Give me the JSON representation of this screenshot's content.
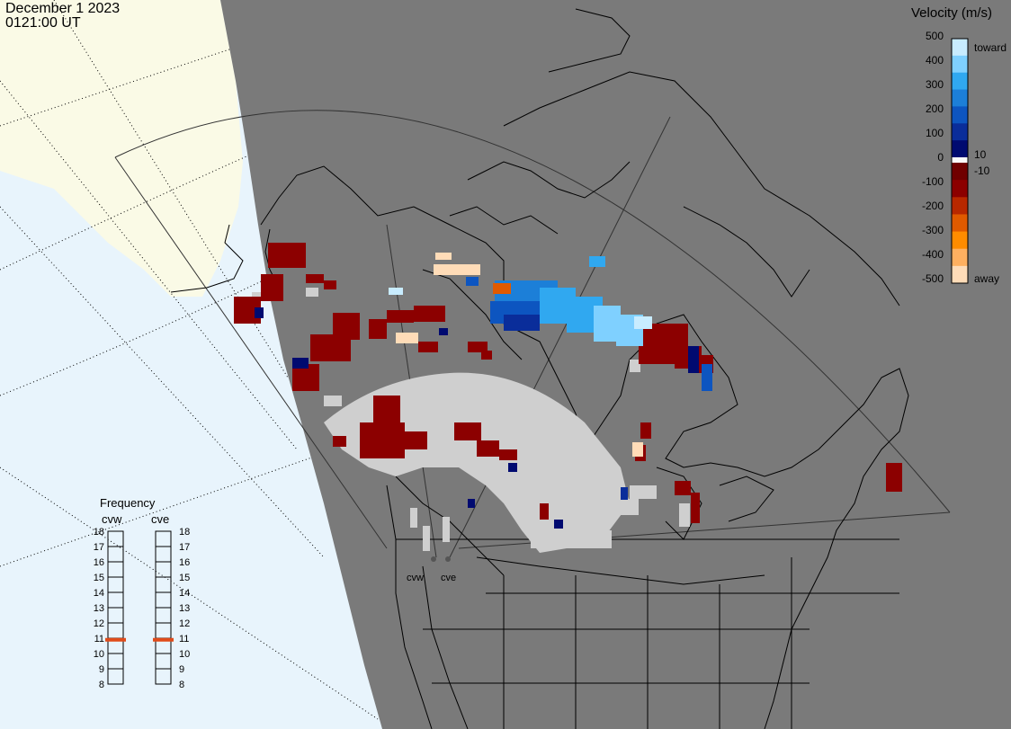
{
  "header": {
    "date": "December 1 2023",
    "time": "0121:00 UT"
  },
  "velocity_legend": {
    "title": "Velocity (m/s)",
    "ticks_upper": [
      "500",
      "400",
      "300",
      "200",
      "100",
      "0"
    ],
    "ticks_lower": [
      "-100",
      "-200",
      "-300",
      "-400",
      "-500"
    ],
    "right_labels": [
      "toward",
      "10",
      "-10",
      "away"
    ],
    "colors": [
      "#c8ecff",
      "#7fd0ff",
      "#30a8f0",
      "#1c7fd8",
      "#0d55c0",
      "#0a2d9a",
      "#000a70",
      "#fafafa",
      "#700000",
      "#8c0000",
      "#b82800",
      "#e05a00",
      "#ff8c00",
      "#ffb060",
      "#ffdcb8"
    ]
  },
  "frequency_panel": {
    "title": "Frequency",
    "radars": [
      "cvw",
      "cve"
    ],
    "scale": [
      "18",
      "17",
      "16",
      "15",
      "14",
      "13",
      "12",
      "11",
      "10",
      "9",
      "8"
    ],
    "marker_mhz": 10.9,
    "marker_color": "#e04b1a"
  },
  "map": {
    "radar_labels": [
      "cvw",
      "cve"
    ],
    "colors": {
      "ocean": "#e8f4fc",
      "land_daylight": "#fafae6",
      "night_shade": "#7a7a7a",
      "coast": "#000000",
      "ground_scatter": "#cfcfcf"
    }
  }
}
